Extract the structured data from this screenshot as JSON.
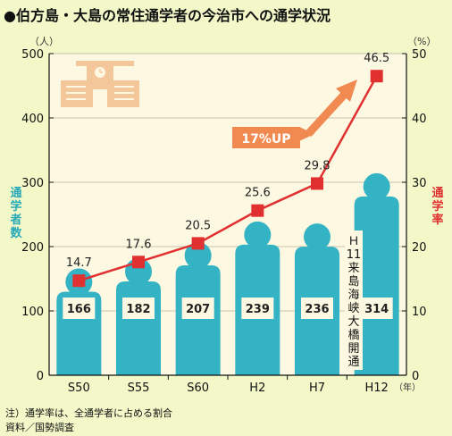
{
  "title": "●伯方島・大島の常住通学者の今治市への通学状況",
  "left_axis": {
    "unit": "（人）",
    "label": "通学者数",
    "ticks": [
      0,
      100,
      200,
      300,
      400,
      500
    ],
    "min": 0,
    "max": 500
  },
  "right_axis": {
    "unit": "（%）",
    "label": "通学率",
    "ticks": [
      0,
      10,
      20,
      30,
      40,
      50
    ],
    "min": 0,
    "max": 50
  },
  "year_suffix": "（年）",
  "annotation_text": "17%UP",
  "vertical_note": [
    "Ｈ",
    "11",
    "来",
    "島",
    "海",
    "峡",
    "大",
    "橋",
    "開",
    "通"
  ],
  "footnotes": [
    "注）通学率は、全通学者に占める割合",
    "資料／国勢調査"
  ],
  "colors": {
    "background": "#f3f8c8",
    "plot_bg": "#fdf8e1",
    "bar": "#33b3c4",
    "line": "#e03030",
    "arrow": "#f08a50",
    "axis_teal": "#27a9b8",
    "axis_red": "#e03030"
  },
  "chart_data": {
    "type": "bar",
    "title": "●伯方島・大島の常住通学者の今治市への通学状況",
    "categories": [
      "S50",
      "S55",
      "S60",
      "H2",
      "H7",
      "H12"
    ],
    "series": [
      {
        "values": [
          166,
          182,
          207,
          239,
          236,
          314
        ],
        "axis": "left",
        "unit": "人",
        "shape": "person-bar"
      },
      {
        "values": [
          14.7,
          17.6,
          20.5,
          25.6,
          29.8,
          46.5
        ],
        "axis": "right",
        "unit": "%",
        "type": "line",
        "marker": "square"
      }
    ],
    "ylabel": "通学者数",
    "y2label": "通学率",
    "ylim": [
      0,
      500
    ],
    "y2lim": [
      0,
      50
    ],
    "grid": true
  }
}
